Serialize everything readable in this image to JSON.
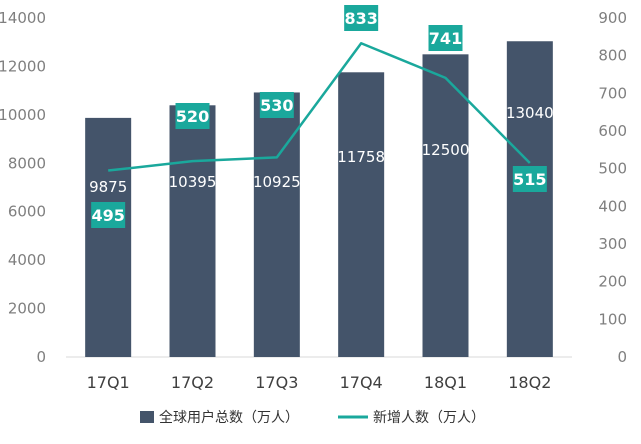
{
  "chart_data": {
    "type": "bar",
    "categories": [
      "17Q1",
      "17Q2",
      "17Q3",
      "17Q4",
      "18Q1",
      "18Q2"
    ],
    "y_left_ticks": [
      "0",
      "2000",
      "4000",
      "6000",
      "8000",
      "10000",
      "12000",
      "14000"
    ],
    "y_right_ticks": [
      "0",
      "100",
      "200",
      "300",
      "400",
      "500",
      "600",
      "700",
      "800",
      "900"
    ],
    "ylim_left": [
      0,
      14000
    ],
    "ylim_right": [
      0,
      900
    ],
    "grid": false,
    "legend_position": "bottom",
    "series": [
      {
        "name": "全球用户总数（万人）",
        "type": "bar",
        "axis": "left",
        "values": [
          9875,
          10395,
          10925,
          11758,
          12500,
          13040
        ],
        "labels": [
          "9875",
          "10395",
          "10925",
          "11758",
          "12500",
          "13040"
        ],
        "color": "#44546a"
      },
      {
        "name": "新增人数（万人）",
        "type": "line",
        "axis": "right",
        "values": [
          495,
          520,
          530,
          833,
          741,
          515
        ],
        "labels": [
          "495",
          "520",
          "530",
          "833",
          "741",
          "515"
        ],
        "color": "#1aa89c"
      }
    ]
  }
}
